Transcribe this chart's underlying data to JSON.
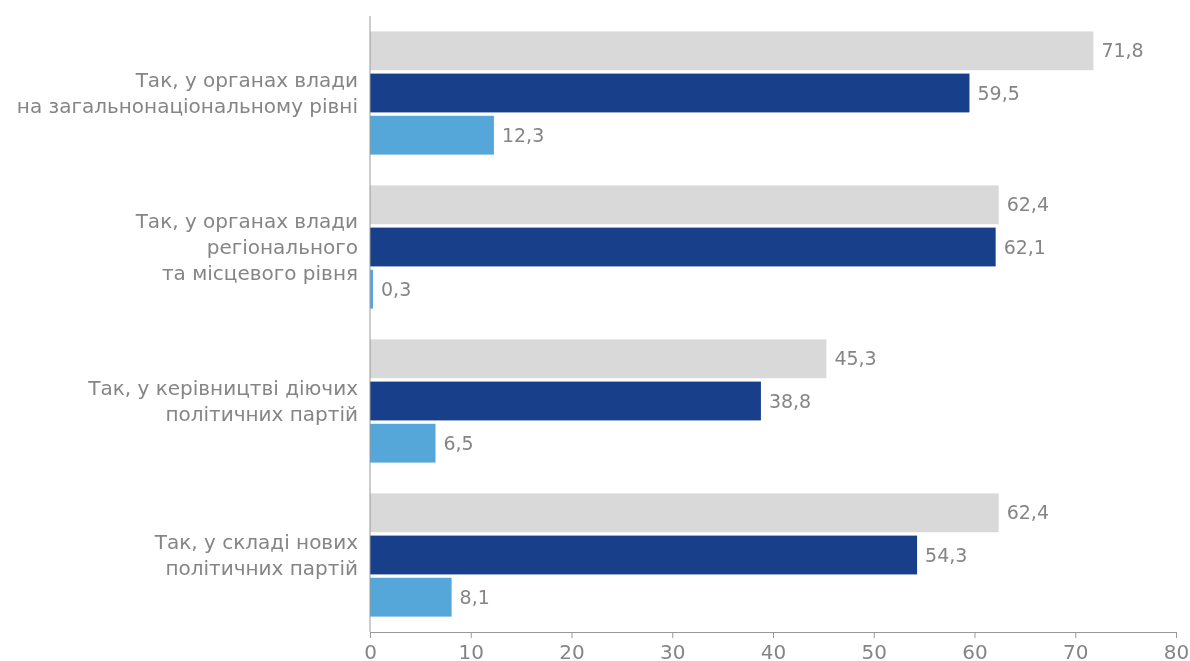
{
  "chart_data": {
    "type": "bar",
    "orientation": "horizontal",
    "categories": [
      "Так, у органах влади\nна загальнонаціональному рівні",
      "Так, у органах влади\nрегіонального\nта місцевого рівня",
      "Так, у керівництві діючих\nполітичних партій",
      "Так, у складі нових\nполітичних партій"
    ],
    "series": [
      {
        "color": "#d9d9d9",
        "values": [
          71.8,
          62.4,
          45.3,
          62.4
        ],
        "value_labels": [
          "71,8",
          "62,4",
          "45,3",
          "62,4"
        ]
      },
      {
        "color": "#173f8a",
        "values": [
          59.5,
          62.1,
          38.8,
          54.3
        ],
        "value_labels": [
          "59,5",
          "62,1",
          "38,8",
          "54,3"
        ]
      },
      {
        "color": "#55a7d9",
        "values": [
          12.3,
          0.3,
          6.5,
          8.1
        ],
        "value_labels": [
          "12,3",
          "0,3",
          "6,5",
          "8,1"
        ]
      }
    ],
    "xlim": [
      0,
      80
    ],
    "xticks": [
      0,
      10,
      20,
      30,
      40,
      50,
      60,
      70,
      80
    ]
  }
}
